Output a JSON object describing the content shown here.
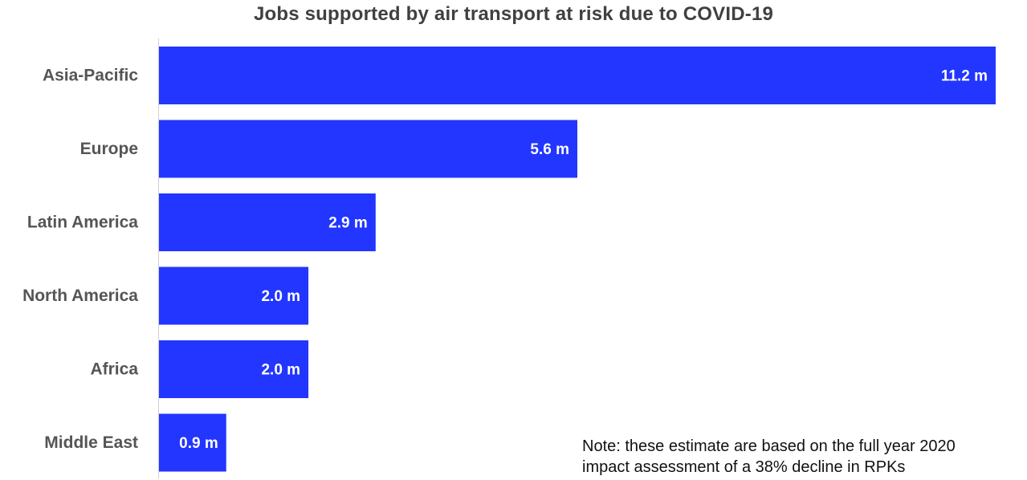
{
  "chart_data": {
    "type": "bar",
    "orientation": "horizontal",
    "title": "Jobs supported by air transport at risk due to COVID-19",
    "categories": [
      "Asia-Pacific",
      "Europe",
      "Latin America",
      "North America",
      "Africa",
      "Middle East"
    ],
    "values": [
      11.2,
      5.6,
      2.9,
      2.0,
      2.0,
      0.9
    ],
    "data_labels": [
      "11.2 m",
      "5.6 m",
      "2.9 m",
      "2.0 m",
      "2.0 m",
      "0.9 m"
    ],
    "xlim": [
      0,
      11.2
    ],
    "grid": false,
    "legend": "none",
    "bar_color": "#2236ff",
    "label_color": "#555555",
    "data_label_color": "#ffffff"
  },
  "note": {
    "line1": "Note: these estimate are based on the full year 2020",
    "line2": "impact assessment of a 38% decline in RPKs"
  }
}
